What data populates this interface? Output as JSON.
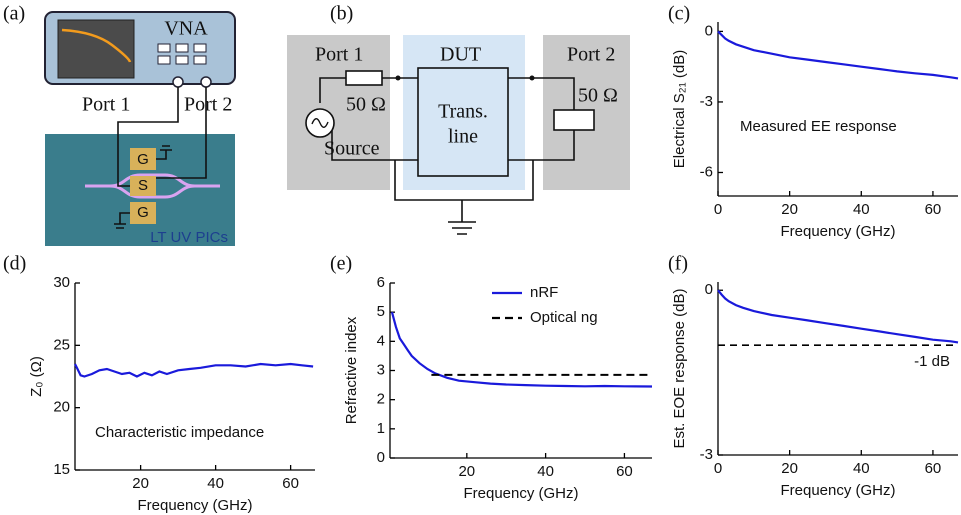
{
  "diagram_a": {
    "label": "(a)",
    "instrument": "VNA",
    "port1": "Port 1",
    "port2": "Port 2",
    "electrodes": [
      "G",
      "S",
      "G"
    ],
    "chip": "LT UV PICs"
  },
  "diagram_b": {
    "label": "(b)",
    "port1": "Port 1",
    "r1": "50 Ω",
    "source": "Source",
    "dut": "DUT",
    "line1": "Trans.",
    "line2": "line",
    "port2": "Port 2",
    "r2": "50 Ω"
  },
  "chart_data": [
    {
      "type": "line",
      "title": "(c)",
      "xlabel": "Frequency (GHz)",
      "ylabel": "Electrical S₂₁ (dB)",
      "annotation": "Measured EE response",
      "xlim": [
        0,
        67
      ],
      "ylim": [
        -7,
        0.4
      ],
      "xticks": [
        0,
        20,
        40,
        60
      ],
      "yticks": [
        0,
        -3,
        -6
      ],
      "series": [
        {
          "color": "#1a1adb",
          "x": [
            0,
            1,
            2,
            3,
            5,
            7,
            10,
            15,
            20,
            25,
            30,
            35,
            40,
            45,
            50,
            55,
            60,
            65,
            67
          ],
          "values": [
            0,
            -0.15,
            -0.3,
            -0.4,
            -0.55,
            -0.65,
            -0.8,
            -0.95,
            -1.1,
            -1.2,
            -1.3,
            -1.4,
            -1.5,
            -1.6,
            -1.7,
            -1.78,
            -1.85,
            -1.95,
            -2.0
          ]
        }
      ]
    },
    {
      "type": "line",
      "title": "(d)",
      "xlabel": "Frequency (GHz)",
      "ylabel": "Z₀ (Ω)",
      "annotation": "Characteristic impedance",
      "xlim": [
        2.5,
        66.5
      ],
      "ylim": [
        15,
        30
      ],
      "xticks": [
        20,
        40,
        60
      ],
      "yticks": [
        15,
        20,
        25,
        30
      ],
      "series": [
        {
          "color": "#1a1adb",
          "x": [
            2.5,
            3,
            4,
            5,
            7,
            9,
            11,
            13,
            15,
            17,
            19,
            21,
            23,
            25,
            27,
            30,
            33,
            36,
            40,
            44,
            48,
            52,
            56,
            60,
            63,
            66
          ],
          "values": [
            23.5,
            23.2,
            22.6,
            22.5,
            22.7,
            23.0,
            23.1,
            22.9,
            22.7,
            22.8,
            22.5,
            22.8,
            22.6,
            22.9,
            22.7,
            23.0,
            23.1,
            23.2,
            23.4,
            23.4,
            23.3,
            23.5,
            23.4,
            23.5,
            23.4,
            23.3
          ]
        }
      ]
    },
    {
      "type": "line",
      "title": "(e)",
      "xlabel": "Frequency (GHz)",
      "ylabel": "Refractive index",
      "xlim": [
        0.5,
        67
      ],
      "ylim": [
        0,
        6
      ],
      "xticks": [
        20,
        40,
        60
      ],
      "yticks": [
        0,
        1,
        2,
        3,
        4,
        5,
        6
      ],
      "series": [
        {
          "name": "nRF",
          "color": "#1a1adb",
          "x": [
            1,
            2,
            3,
            4,
            5,
            6,
            8,
            10,
            12,
            15,
            18,
            22,
            26,
            30,
            35,
            40,
            45,
            50,
            55,
            60,
            67
          ],
          "values": [
            5.0,
            4.5,
            4.1,
            3.9,
            3.7,
            3.5,
            3.25,
            3.05,
            2.9,
            2.75,
            2.65,
            2.6,
            2.55,
            2.52,
            2.5,
            2.48,
            2.47,
            2.46,
            2.47,
            2.46,
            2.45
          ]
        },
        {
          "name": "Optical ng",
          "color": "#000000",
          "dash": true,
          "x": [
            11,
            67
          ],
          "values": [
            2.85,
            2.85
          ]
        }
      ]
    },
    {
      "type": "line",
      "title": "(f)",
      "xlabel": "Frequency (GHz)",
      "ylabel": "Est. EOE response (dB)",
      "xlim": [
        0,
        67
      ],
      "ylim": [
        -3,
        0.15
      ],
      "xticks": [
        0,
        20,
        40,
        60
      ],
      "yticks": [
        0,
        -3
      ],
      "hline": {
        "value": -1,
        "label": "-1 dB"
      },
      "series": [
        {
          "color": "#1a1adb",
          "x": [
            0,
            1,
            2,
            3,
            5,
            7,
            10,
            15,
            20,
            25,
            30,
            35,
            40,
            45,
            50,
            55,
            60,
            65,
            67
          ],
          "values": [
            0,
            -0.08,
            -0.15,
            -0.2,
            -0.27,
            -0.32,
            -0.38,
            -0.45,
            -0.5,
            -0.55,
            -0.6,
            -0.65,
            -0.7,
            -0.75,
            -0.8,
            -0.85,
            -0.9,
            -0.93,
            -0.95
          ]
        }
      ]
    }
  ]
}
